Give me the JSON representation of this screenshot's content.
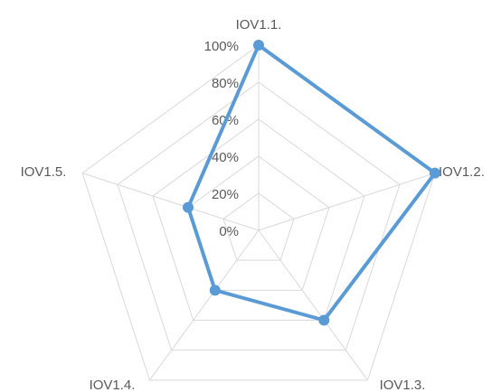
{
  "chart_data": {
    "type": "radar",
    "categories": [
      "IOV1.1.",
      "IOV1.2.",
      "IOV1.3.",
      "IOV1.4.",
      "IOV1.5."
    ],
    "values": [
      100,
      100,
      60,
      40,
      40
    ],
    "color": "#5b9bd5",
    "ylim": [
      0,
      100
    ],
    "yticks": [
      {
        "value": 0,
        "label": "0%"
      },
      {
        "value": 20,
        "label": "20%"
      },
      {
        "value": 40,
        "label": "40%"
      },
      {
        "value": 60,
        "label": "60%"
      },
      {
        "value": 80,
        "label": "80%"
      },
      {
        "value": 100,
        "label": "100%"
      }
    ],
    "grid": true
  }
}
